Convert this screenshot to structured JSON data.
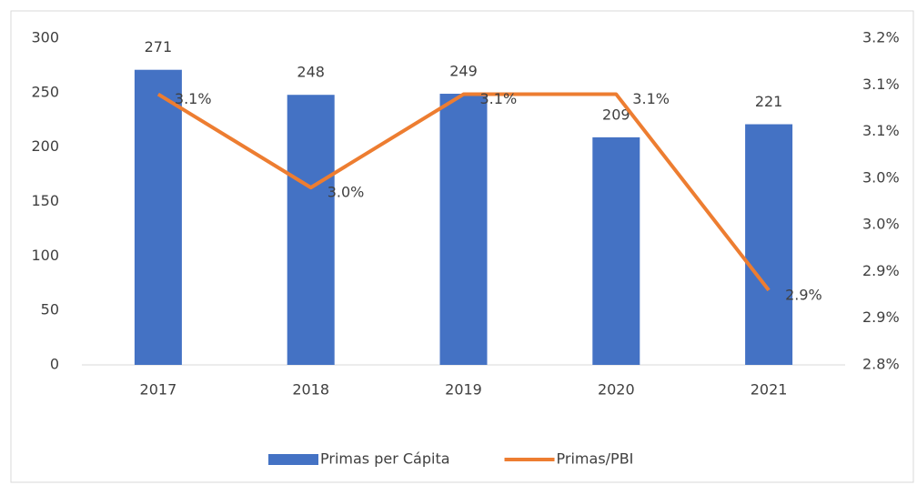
{
  "chart_data": {
    "type": "bar-line",
    "categories": [
      "2017",
      "2018",
      "2019",
      "2020",
      "2021"
    ],
    "series": [
      {
        "name": "Primas per Cápita",
        "type": "bar",
        "color": "#4472c4",
        "values": [
          271,
          248,
          249,
          209,
          221
        ]
      },
      {
        "name": "Primas/PBI",
        "type": "line",
        "axis": "y2",
        "color": "#ed7d31",
        "values": [
          3.14,
          3.04,
          3.14,
          3.14,
          2.93
        ],
        "value_labels": [
          "3.1%",
          "3.0%",
          "3.1%",
          "3.1%",
          "2.9%"
        ]
      }
    ],
    "ylim": [
      0,
      300
    ],
    "yticks": [
      0,
      50,
      100,
      150,
      200,
      250,
      300
    ],
    "y2lim": [
      2.85,
      3.2
    ],
    "y2ticks": [
      {
        "value": 2.85,
        "label": "2.8%"
      },
      {
        "value": 2.9,
        "label": "2.9%"
      },
      {
        "value": 2.95,
        "label": "2.9%"
      },
      {
        "value": 3.0,
        "label": "3.0%"
      },
      {
        "value": 3.05,
        "label": "3.0%"
      },
      {
        "value": 3.1,
        "label": "3.1%"
      },
      {
        "value": 3.15,
        "label": "3.1%"
      },
      {
        "value": 3.2,
        "label": "3.2%"
      }
    ],
    "grid": false,
    "legend": "bottom"
  }
}
